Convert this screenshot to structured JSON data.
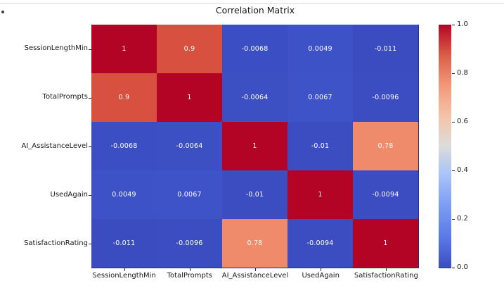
{
  "page": {
    "background": "#ffffff",
    "top_divider_color": "#dcdcdc",
    "annotation_text_color": "#ffffff",
    "axis_text_color": "#1a1a1a",
    "heatmap_edge_color": "#27307f"
  },
  "chart_data": {
    "type": "heatmap",
    "title": "Correlation Matrix",
    "xlabel": "",
    "ylabel": "",
    "colormap": "coolwarm",
    "grid": false,
    "legend_position": "right-colorbar",
    "labels": [
      "SessionLengthMin",
      "TotalPrompts",
      "AI_AssistanceLevel",
      "UsedAgain",
      "SatisfactionRating"
    ],
    "matrix": [
      [
        1,
        0.9,
        -0.0068,
        0.0049,
        -0.011
      ],
      [
        0.9,
        1,
        -0.0064,
        0.0067,
        -0.0096
      ],
      [
        -0.0068,
        -0.0064,
        1,
        -0.01,
        0.78
      ],
      [
        0.0049,
        0.0067,
        -0.01,
        1,
        -0.0094
      ],
      [
        -0.011,
        -0.0096,
        0.78,
        -0.0094,
        1
      ]
    ],
    "cell_text": [
      [
        "1",
        "0.9",
        "-0.0068",
        "0.0049",
        "-0.011"
      ],
      [
        "0.9",
        "1",
        "-0.0064",
        "0.0067",
        "-0.0096"
      ],
      [
        "-0.0068",
        "-0.0064",
        "1",
        "-0.01",
        "0.78"
      ],
      [
        "0.0049",
        "0.0067",
        "-0.01",
        "1",
        "-0.0094"
      ],
      [
        "-0.011",
        "-0.0096",
        "0.78",
        "-0.0094",
        "1"
      ]
    ],
    "cell_colors": [
      [
        "#b40426",
        "#d8503f",
        "#3c4ec3",
        "#3e52c7",
        "#3b4cc0"
      ],
      [
        "#d8503f",
        "#b40426",
        "#3c4fc3",
        "#3e53c8",
        "#3b4dc1"
      ],
      [
        "#3c4ec3",
        "#3c4fc3",
        "#b40426",
        "#3b4dc1",
        "#ef8a6a"
      ],
      [
        "#3e52c7",
        "#3e53c8",
        "#3b4dc1",
        "#b40426",
        "#3b4dc1"
      ],
      [
        "#3b4cc0",
        "#3b4dc1",
        "#ef8a6a",
        "#3b4dc1",
        "#b40426"
      ]
    ],
    "colorbar": {
      "range": [
        0.0,
        1.0
      ],
      "tick_labels": [
        "1.0",
        "0.8",
        "0.6",
        "0.4",
        "0.2",
        "0.0"
      ],
      "gradient_stops_bottom_to_top": [
        {
          "color": "#3b4cc0",
          "pos": 0
        },
        {
          "color": "#5a78e4",
          "pos": 12
        },
        {
          "color": "#7b9bf2",
          "pos": 25
        },
        {
          "color": "#a8c2fb",
          "pos": 38
        },
        {
          "color": "#dcdcda",
          "pos": 50
        },
        {
          "color": "#f4c4ac",
          "pos": 62
        },
        {
          "color": "#f39879",
          "pos": 75
        },
        {
          "color": "#d85b45",
          "pos": 88
        },
        {
          "color": "#b40426",
          "pos": 100
        }
      ]
    }
  }
}
